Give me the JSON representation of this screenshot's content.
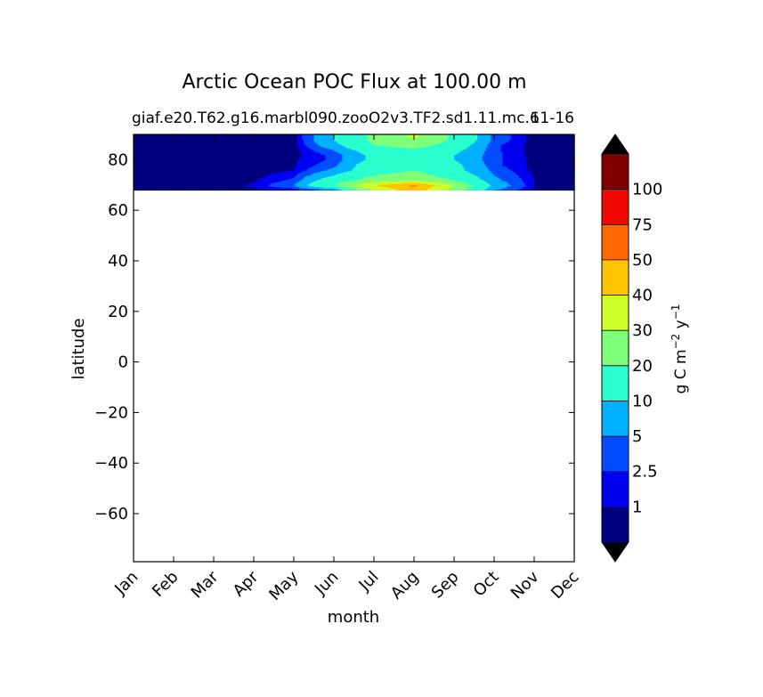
{
  "chart_data": {
    "type": "heatmap",
    "title": "Arctic Ocean POC Flux at 100.00 m",
    "subtitle_left": "giaf.e20.T62.g16.marbl090.zooO2v3.TF2.sd1.11.mc.6",
    "subtitle_right": "11-16",
    "xlabel": "month",
    "ylabel": "latitude",
    "x_categories": [
      "Jan",
      "Feb",
      "Mar",
      "Apr",
      "May",
      "Jun",
      "Jul",
      "Aug",
      "Sep",
      "Oct",
      "Nov",
      "Dec"
    ],
    "xlim": [
      0,
      11
    ],
    "ylim": [
      -79,
      90
    ],
    "y_ticks": [
      80,
      60,
      40,
      20,
      0,
      -20,
      -40,
      -60
    ],
    "y_tick_labels": [
      "80",
      "60",
      "40",
      "20",
      "0",
      "−20",
      "−40",
      "−60"
    ],
    "data_lat_range": [
      68,
      90
    ],
    "colorbar": {
      "label_main": "g C m",
      "label_exp1": "−2",
      "label_mid": " y",
      "label_exp2": "−1",
      "extend": "both",
      "boundaries": [
        0,
        1,
        2.5,
        5,
        10,
        20,
        30,
        40,
        50,
        75,
        100,
        120
      ],
      "tick_labels": [
        "1",
        "2.5",
        "5",
        "10",
        "20",
        "30",
        "40",
        "50",
        "75",
        "100"
      ],
      "colors": [
        "#00007f",
        "#0000f1",
        "#004dff",
        "#00b1ff",
        "#29ffce",
        "#7dff7a",
        "#ceff29",
        "#ffc400",
        "#ff6800",
        "#f10800",
        "#7f0000"
      ],
      "under_color": "#000000",
      "over_color": "#000000"
    },
    "field": {
      "lats": [
        68,
        70,
        72,
        74,
        76,
        78,
        80,
        82,
        84,
        86,
        88,
        90
      ],
      "values": [
        [
          0.1,
          0.1,
          0.1,
          0.5,
          0.8,
          2.5,
          30,
          45,
          25,
          5,
          0.5,
          0.1
        ],
        [
          0.1,
          0.1,
          0.5,
          1.2,
          5,
          20,
          40,
          52,
          30,
          8,
          1,
          0.1
        ],
        [
          0.1,
          0.1,
          0.3,
          0.8,
          3,
          15,
          25,
          30,
          20,
          6,
          1,
          0.1
        ],
        [
          0.1,
          0.1,
          0.2,
          0.5,
          2,
          10,
          20,
          25,
          15,
          5,
          0.8,
          0.1
        ],
        [
          0.1,
          0.1,
          0.1,
          0.3,
          1,
          6,
          15,
          20,
          12,
          4,
          0.5,
          0.1
        ],
        [
          0.1,
          0.1,
          0.1,
          0.2,
          0.8,
          4,
          15,
          15,
          12,
          3,
          0.5,
          0.1
        ],
        [
          0.1,
          0.1,
          0.1,
          0.2,
          0.8,
          3,
          12,
          10,
          10,
          3,
          0.5,
          0.1
        ],
        [
          0.1,
          0.1,
          0.1,
          0.1,
          0.5,
          3,
          12,
          12,
          10,
          3,
          0.4,
          0.1
        ],
        [
          0.1,
          0.1,
          0.1,
          0.1,
          0.3,
          5,
          15,
          18,
          12,
          3,
          0.3,
          0.1
        ],
        [
          0.1,
          0.1,
          0.1,
          0.1,
          0.3,
          8,
          20,
          25,
          15,
          3,
          0.3,
          0.1
        ],
        [
          0.1,
          0.1,
          0.1,
          0.1,
          0.3,
          10,
          22,
          30,
          18,
          4,
          0.3,
          0.1
        ],
        [
          0.1,
          0.1,
          0.1,
          0.1,
          0.3,
          10,
          22,
          32,
          18,
          4,
          0.3,
          0.1
        ]
      ]
    }
  }
}
